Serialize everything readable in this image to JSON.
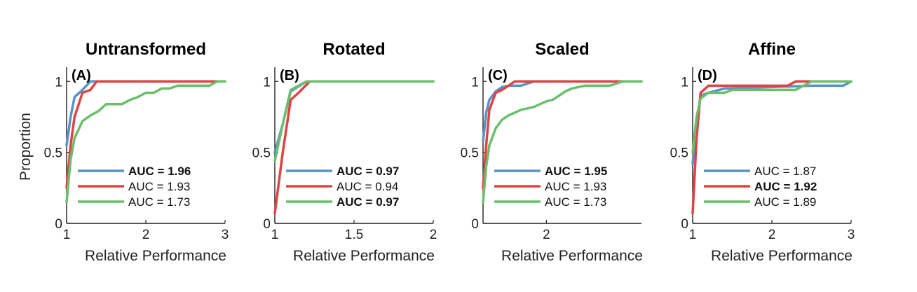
{
  "colors": {
    "blue": "#5b92c5",
    "red": "#df4345",
    "green": "#6bbf6b"
  },
  "chart_data": [
    {
      "type": "line",
      "title": "Untransformed",
      "panel_label": "(A)",
      "xlabel": "Relative Performance",
      "ylabel": "Proportion",
      "xlim": [
        1,
        3
      ],
      "ylim": [
        0,
        1.1
      ],
      "xticks": [
        1,
        2,
        3
      ],
      "xtick_labels": [
        "1",
        "2",
        "3"
      ],
      "yticks": [
        0,
        0.5,
        1
      ],
      "ytick_labels": [
        "0",
        "0.5",
        "1"
      ],
      "legend": "lower-right",
      "series": [
        {
          "name": "AUC = 1.96",
          "color": "blue",
          "bold": true,
          "x": [
            1.0,
            1.05,
            1.1,
            1.2,
            1.3,
            1.4,
            3.0
          ],
          "y": [
            0.55,
            0.75,
            0.89,
            0.94,
            1.0,
            1.0,
            1.0
          ]
        },
        {
          "name": "AUC = 1.93",
          "color": "red",
          "bold": false,
          "x": [
            1.0,
            1.05,
            1.1,
            1.2,
            1.3,
            1.38,
            3.0
          ],
          "y": [
            0.25,
            0.55,
            0.75,
            0.92,
            0.94,
            1.0,
            1.0
          ]
        },
        {
          "name": "AUC = 1.73",
          "color": "green",
          "bold": false,
          "x": [
            1.0,
            1.05,
            1.1,
            1.2,
            1.3,
            1.4,
            1.5,
            1.7,
            1.8,
            1.9,
            2.0,
            2.1,
            2.2,
            2.3,
            2.4,
            2.5,
            2.6,
            2.8,
            2.9,
            3.0
          ],
          "y": [
            0.15,
            0.45,
            0.6,
            0.72,
            0.76,
            0.79,
            0.84,
            0.84,
            0.87,
            0.89,
            0.92,
            0.92,
            0.95,
            0.95,
            0.97,
            0.97,
            0.97,
            0.97,
            1.0,
            1.0
          ]
        }
      ]
    },
    {
      "type": "line",
      "title": "Rotated",
      "panel_label": "(B)",
      "xlabel": "Relative Performance",
      "ylabel": "",
      "xlim": [
        1,
        2
      ],
      "ylim": [
        0,
        1.1
      ],
      "xticks": [
        1,
        1.5,
        2
      ],
      "xtick_labels": [
        "1",
        "1.5",
        "2"
      ],
      "yticks": [
        0,
        0.5,
        1
      ],
      "ytick_labels": [
        "0",
        "0.5",
        "1"
      ],
      "legend": "lower-right",
      "series": [
        {
          "name": "AUC = 0.97",
          "color": "blue",
          "bold": true,
          "x": [
            1.0,
            1.05,
            1.1,
            1.2,
            2.0
          ],
          "y": [
            0.5,
            0.7,
            0.93,
            1.0,
            1.0
          ]
        },
        {
          "name": "AUC = 0.94",
          "color": "red",
          "bold": false,
          "x": [
            1.0,
            1.05,
            1.1,
            1.15,
            1.22,
            2.0
          ],
          "y": [
            0.07,
            0.5,
            0.87,
            0.92,
            1.0,
            1.0
          ]
        },
        {
          "name": "AUC = 0.97",
          "color": "green",
          "bold": true,
          "x": [
            1.0,
            1.05,
            1.1,
            1.2,
            2.0
          ],
          "y": [
            0.44,
            0.7,
            0.94,
            1.0,
            1.0
          ]
        }
      ]
    },
    {
      "type": "line",
      "title": "Scaled",
      "panel_label": "(C)",
      "xlabel": "Relative Performance",
      "ylabel": "",
      "xlim": [
        1,
        3.5
      ],
      "ylim": [
        0,
        1.1
      ],
      "xticks": [
        2
      ],
      "xtick_labels": [
        "2"
      ],
      "yticks": [
        0,
        0.5,
        1
      ],
      "ytick_labels": [
        "0",
        "0.5",
        "1"
      ],
      "legend": "lower-right",
      "series": [
        {
          "name": "AUC = 1.95",
          "color": "blue",
          "bold": true,
          "x": [
            1.0,
            1.05,
            1.1,
            1.2,
            1.3,
            1.4,
            1.6,
            1.8,
            2.2,
            3.5
          ],
          "y": [
            0.58,
            0.78,
            0.87,
            0.93,
            0.96,
            0.97,
            0.97,
            1.0,
            1.0,
            1.0
          ]
        },
        {
          "name": "AUC = 1.93",
          "color": "red",
          "bold": false,
          "x": [
            1.0,
            1.05,
            1.1,
            1.2,
            1.3,
            1.4,
            1.5,
            3.5
          ],
          "y": [
            0.25,
            0.55,
            0.8,
            0.92,
            0.94,
            0.97,
            1.0,
            1.0
          ]
        },
        {
          "name": "AUC = 1.73",
          "color": "green",
          "bold": false,
          "x": [
            1.0,
            1.05,
            1.1,
            1.2,
            1.3,
            1.4,
            1.5,
            1.6,
            1.7,
            1.8,
            1.9,
            2.0,
            2.1,
            2.2,
            2.3,
            2.4,
            2.6,
            2.8,
            3.0,
            3.2,
            3.5
          ],
          "y": [
            0.15,
            0.4,
            0.55,
            0.67,
            0.73,
            0.76,
            0.78,
            0.8,
            0.81,
            0.82,
            0.84,
            0.86,
            0.87,
            0.9,
            0.93,
            0.95,
            0.97,
            0.97,
            0.97,
            1.0,
            1.0
          ]
        }
      ]
    },
    {
      "type": "line",
      "title": "Affine",
      "panel_label": "(D)",
      "xlabel": "Relative Performance",
      "ylabel": "",
      "xlim": [
        1,
        3
      ],
      "ylim": [
        0,
        1.1
      ],
      "xticks": [
        1,
        2,
        3
      ],
      "xtick_labels": [
        "1",
        "2",
        "3"
      ],
      "yticks": [
        0,
        0.5,
        1
      ],
      "ytick_labels": [
        "0",
        "0.5",
        "1"
      ],
      "legend": "lower-right",
      "series": [
        {
          "name": "AUC = 1.87",
          "color": "blue",
          "bold": false,
          "x": [
            1.0,
            1.05,
            1.1,
            1.2,
            1.4,
            2.5,
            2.9,
            3.0
          ],
          "y": [
            0.42,
            0.7,
            0.9,
            0.92,
            0.95,
            0.97,
            0.97,
            1.0
          ]
        },
        {
          "name": "AUC = 1.92",
          "color": "red",
          "bold": true,
          "x": [
            1.0,
            1.05,
            1.1,
            1.2,
            2.2,
            2.3,
            2.5,
            3.0
          ],
          "y": [
            0.07,
            0.6,
            0.92,
            0.97,
            0.97,
            1.0,
            1.0,
            1.0
          ]
        },
        {
          "name": "AUC = 1.89",
          "color": "green",
          "bold": false,
          "x": [
            1.0,
            1.05,
            1.1,
            1.2,
            1.4,
            1.5,
            2.3,
            2.5,
            3.0
          ],
          "y": [
            0.5,
            0.75,
            0.88,
            0.92,
            0.92,
            0.94,
            0.94,
            1.0,
            1.0
          ]
        }
      ]
    }
  ]
}
